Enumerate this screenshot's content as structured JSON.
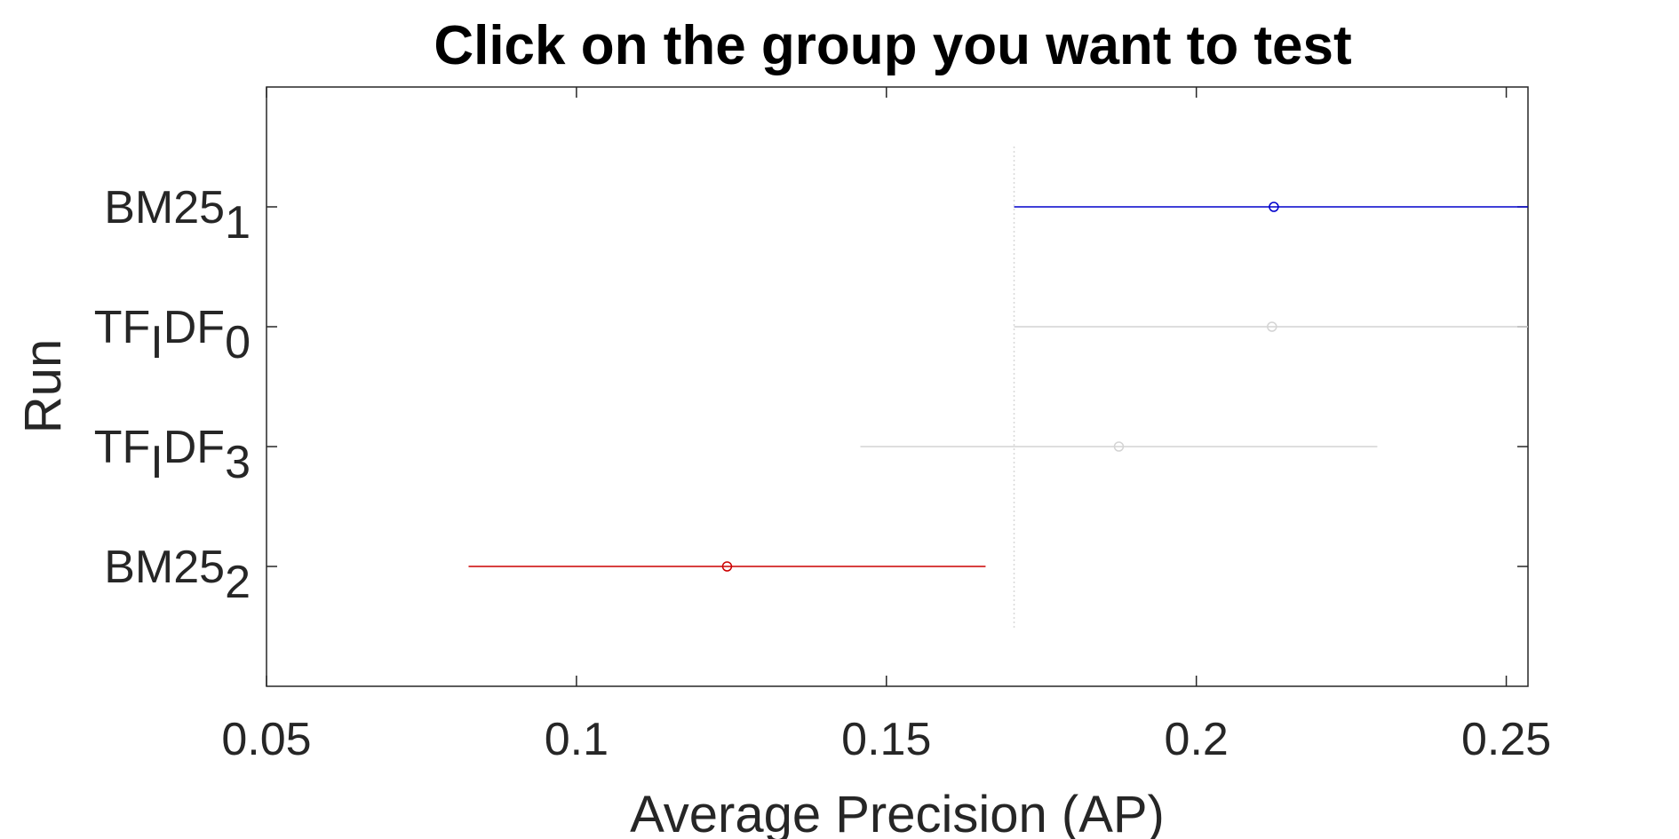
{
  "chart_data": {
    "type": "scatter",
    "title": "Click on the group you want to test",
    "xlabel": "Average Precision (AP)",
    "ylabel": "Run",
    "xlim": [
      0.05,
      0.2535
    ],
    "xticks": [
      "0.05",
      "0.1",
      "0.15",
      "0.2",
      "0.25"
    ],
    "xtick_values": [
      0.05,
      0.1,
      0.15,
      0.2,
      0.25
    ],
    "grid": false,
    "legend": "none",
    "reference_line": {
      "x": 0.1706,
      "style": "dotted",
      "color": "#d9d9d9"
    },
    "series": [
      {
        "label": "BM25",
        "subscript": "1",
        "mean": 0.2125,
        "low": 0.1706,
        "high": 0.2535,
        "color": "#0000cc"
      },
      {
        "label_parts": [
          {
            "text": "TF"
          },
          {
            "text": "I",
            "sub": true
          },
          {
            "text": "DF"
          },
          {
            "text": "0",
            "sub": true
          }
        ],
        "mean": 0.2122,
        "low": 0.1706,
        "high": 0.2535,
        "color": "#d4d4d4"
      },
      {
        "label_parts": [
          {
            "text": "TF"
          },
          {
            "text": "I",
            "sub": true
          },
          {
            "text": "DF"
          },
          {
            "text": "3",
            "sub": true
          }
        ],
        "mean": 0.1875,
        "low": 0.1458,
        "high": 0.2292,
        "color": "#d4d4d4"
      },
      {
        "label": "BM25",
        "subscript": "2",
        "mean": 0.1243,
        "low": 0.0826,
        "high": 0.166,
        "color": "#cc0000"
      }
    ]
  }
}
